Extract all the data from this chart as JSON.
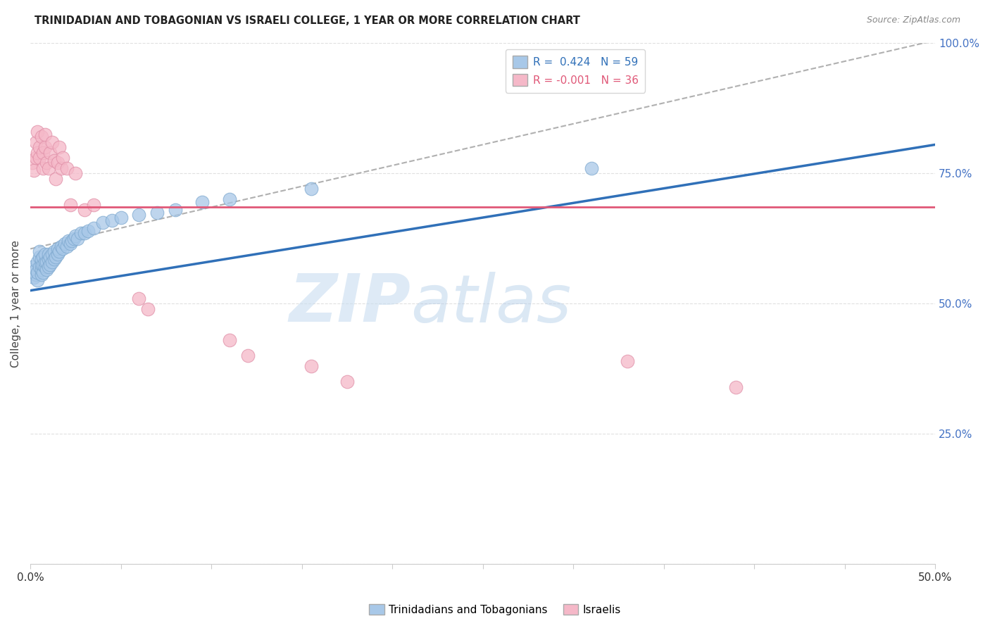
{
  "title": "TRINIDADIAN AND TOBAGONIAN VS ISRAELI COLLEGE, 1 YEAR OR MORE CORRELATION CHART",
  "source": "Source: ZipAtlas.com",
  "ylabel": "College, 1 year or more",
  "watermark_zip": "ZIP",
  "watermark_atlas": "atlas",
  "trin_color": "#a8c8e8",
  "trin_edge_color": "#80aad0",
  "israeli_color": "#f5b8c8",
  "israeli_edge_color": "#e090a8",
  "trin_line_color": "#3070b8",
  "israeli_line_color": "#e05878",
  "dashed_line_color": "#b0b0b0",
  "right_tick_color": "#4472c4",
  "grid_color": "#e0e0e0",
  "background": "#ffffff",
  "trin_line_y0": 0.525,
  "trin_line_y1": 0.805,
  "israeli_line_y": 0.685,
  "dash_line_y0": 0.605,
  "dash_line_y1": 1.005,
  "xlim": [
    0.0,
    0.5
  ],
  "ylim": [
    0.0,
    1.0
  ],
  "trin_x": [
    0.001,
    0.002,
    0.003,
    0.003,
    0.004,
    0.004,
    0.004,
    0.005,
    0.005,
    0.005,
    0.006,
    0.006,
    0.006,
    0.006,
    0.007,
    0.007,
    0.007,
    0.008,
    0.008,
    0.008,
    0.009,
    0.009,
    0.01,
    0.01,
    0.01,
    0.011,
    0.011,
    0.012,
    0.012,
    0.013,
    0.013,
    0.014,
    0.015,
    0.015,
    0.016,
    0.017,
    0.018,
    0.019,
    0.02,
    0.021,
    0.022,
    0.023,
    0.024,
    0.025,
    0.026,
    0.028,
    0.03,
    0.032,
    0.035,
    0.04,
    0.045,
    0.05,
    0.06,
    0.07,
    0.08,
    0.095,
    0.11,
    0.155,
    0.31
  ],
  "trin_y": [
    0.57,
    0.55,
    0.555,
    0.565,
    0.58,
    0.545,
    0.56,
    0.57,
    0.59,
    0.6,
    0.555,
    0.565,
    0.575,
    0.585,
    0.56,
    0.575,
    0.59,
    0.57,
    0.58,
    0.595,
    0.565,
    0.58,
    0.57,
    0.585,
    0.595,
    0.575,
    0.59,
    0.58,
    0.595,
    0.585,
    0.6,
    0.59,
    0.595,
    0.605,
    0.6,
    0.61,
    0.605,
    0.615,
    0.61,
    0.62,
    0.615,
    0.62,
    0.625,
    0.63,
    0.625,
    0.635,
    0.635,
    0.64,
    0.645,
    0.655,
    0.66,
    0.665,
    0.67,
    0.675,
    0.68,
    0.695,
    0.7,
    0.72,
    0.76
  ],
  "isr_x": [
    0.001,
    0.002,
    0.003,
    0.003,
    0.004,
    0.004,
    0.005,
    0.005,
    0.006,
    0.007,
    0.007,
    0.008,
    0.008,
    0.009,
    0.01,
    0.011,
    0.012,
    0.013,
    0.014,
    0.015,
    0.016,
    0.017,
    0.018,
    0.02,
    0.022,
    0.025,
    0.03,
    0.035,
    0.06,
    0.065,
    0.11,
    0.12,
    0.155,
    0.175,
    0.33,
    0.39
  ],
  "isr_y": [
    0.77,
    0.755,
    0.81,
    0.78,
    0.79,
    0.83,
    0.78,
    0.8,
    0.82,
    0.79,
    0.76,
    0.8,
    0.825,
    0.77,
    0.76,
    0.79,
    0.81,
    0.775,
    0.74,
    0.77,
    0.8,
    0.76,
    0.78,
    0.76,
    0.69,
    0.75,
    0.68,
    0.69,
    0.51,
    0.49,
    0.43,
    0.4,
    0.38,
    0.35,
    0.39,
    0.34
  ]
}
